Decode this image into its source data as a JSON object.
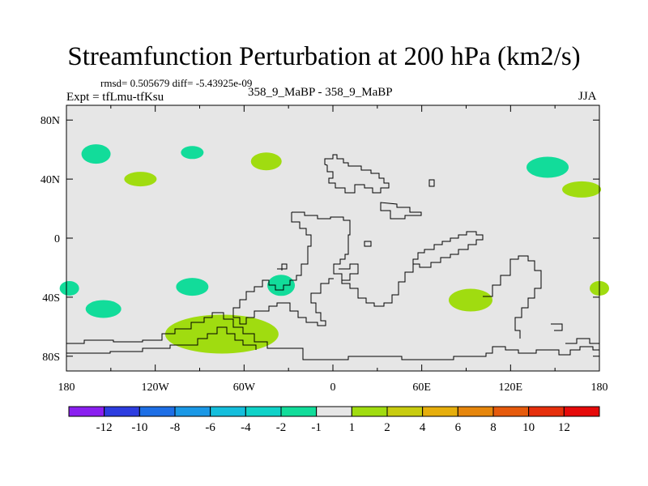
{
  "header": {
    "title": "Streamfunction Perturbation at 200 hPa (km2/s)",
    "stats": "rmsd= 0.505679  diff= -5.43925e-09",
    "experiment": "Expt = tfLmu-tfKsu",
    "case": "358_9_MaBP - 358_9_MaBP",
    "season": "JJA"
  },
  "chart_data": {
    "type": "heatmap",
    "title": "Streamfunction Perturbation at 200 hPa (km2/s)",
    "projection": "cylindrical equidistant",
    "xlim": [
      -180,
      180
    ],
    "ylim": [
      -90,
      90
    ],
    "x_ticks": [
      -180,
      -120,
      -60,
      0,
      60,
      120,
      180
    ],
    "x_tick_labels": [
      "180",
      "120W",
      "60W",
      "0",
      "60E",
      "120E",
      "180"
    ],
    "y_ticks": [
      80,
      40,
      0,
      -40,
      -80
    ],
    "y_tick_labels": [
      "80N",
      "40N",
      "0",
      "40S",
      "80S"
    ],
    "colorbar": {
      "levels": [
        -12,
        -10,
        -8,
        -6,
        -4,
        -2,
        -1,
        1,
        2,
        4,
        6,
        8,
        10,
        12
      ],
      "labels": [
        "-12",
        "-10",
        "-8",
        "-6",
        "-4",
        "-2",
        "-1",
        "1",
        "2",
        "4",
        "6",
        "8",
        "10",
        "12"
      ],
      "colors": [
        "#8a1ff0",
        "#2d3de0",
        "#1e6fe6",
        "#1a98e6",
        "#14bedc",
        "#10d2c8",
        "#12dc9a",
        "#e6e6e6",
        "#a0dc10",
        "#c8cc10",
        "#e6ae0c",
        "#e6860c",
        "#e65a0c",
        "#e62f0c",
        "#e60a0a"
      ]
    },
    "anomalies": [
      {
        "lon": -160,
        "lat": 57,
        "sign": "negative",
        "range": "-2 to -1"
      },
      {
        "lon": -130,
        "lat": 40,
        "sign": "positive",
        "range": "1 to 2"
      },
      {
        "lon": -95,
        "lat": 58,
        "sign": "negative",
        "range": "-2 to -1"
      },
      {
        "lon": -45,
        "lat": 52,
        "sign": "positive",
        "range": "1 to 2"
      },
      {
        "lon": 145,
        "lat": 48,
        "sign": "negative",
        "range": "-2 to -1"
      },
      {
        "lon": 168,
        "lat": 33,
        "sign": "positive",
        "range": "1 to 2"
      },
      {
        "lon": -178,
        "lat": -34,
        "sign": "negative",
        "range": "-2 to -1"
      },
      {
        "lon": -95,
        "lat": -33,
        "sign": "negative",
        "range": "-2 to -1"
      },
      {
        "lon": -35,
        "lat": -32,
        "sign": "negative",
        "range": "-2 to -1"
      },
      {
        "lon": -155,
        "lat": -48,
        "sign": "negative",
        "range": "-2 to -1"
      },
      {
        "lon": 93,
        "lat": -42,
        "sign": "positive",
        "range": "1 to 2"
      },
      {
        "lon": 180,
        "lat": -34,
        "sign": "positive",
        "range": "1 to 2"
      },
      {
        "lon": -75,
        "lat": -65,
        "sign": "positive",
        "range": "1 to 2"
      }
    ]
  }
}
